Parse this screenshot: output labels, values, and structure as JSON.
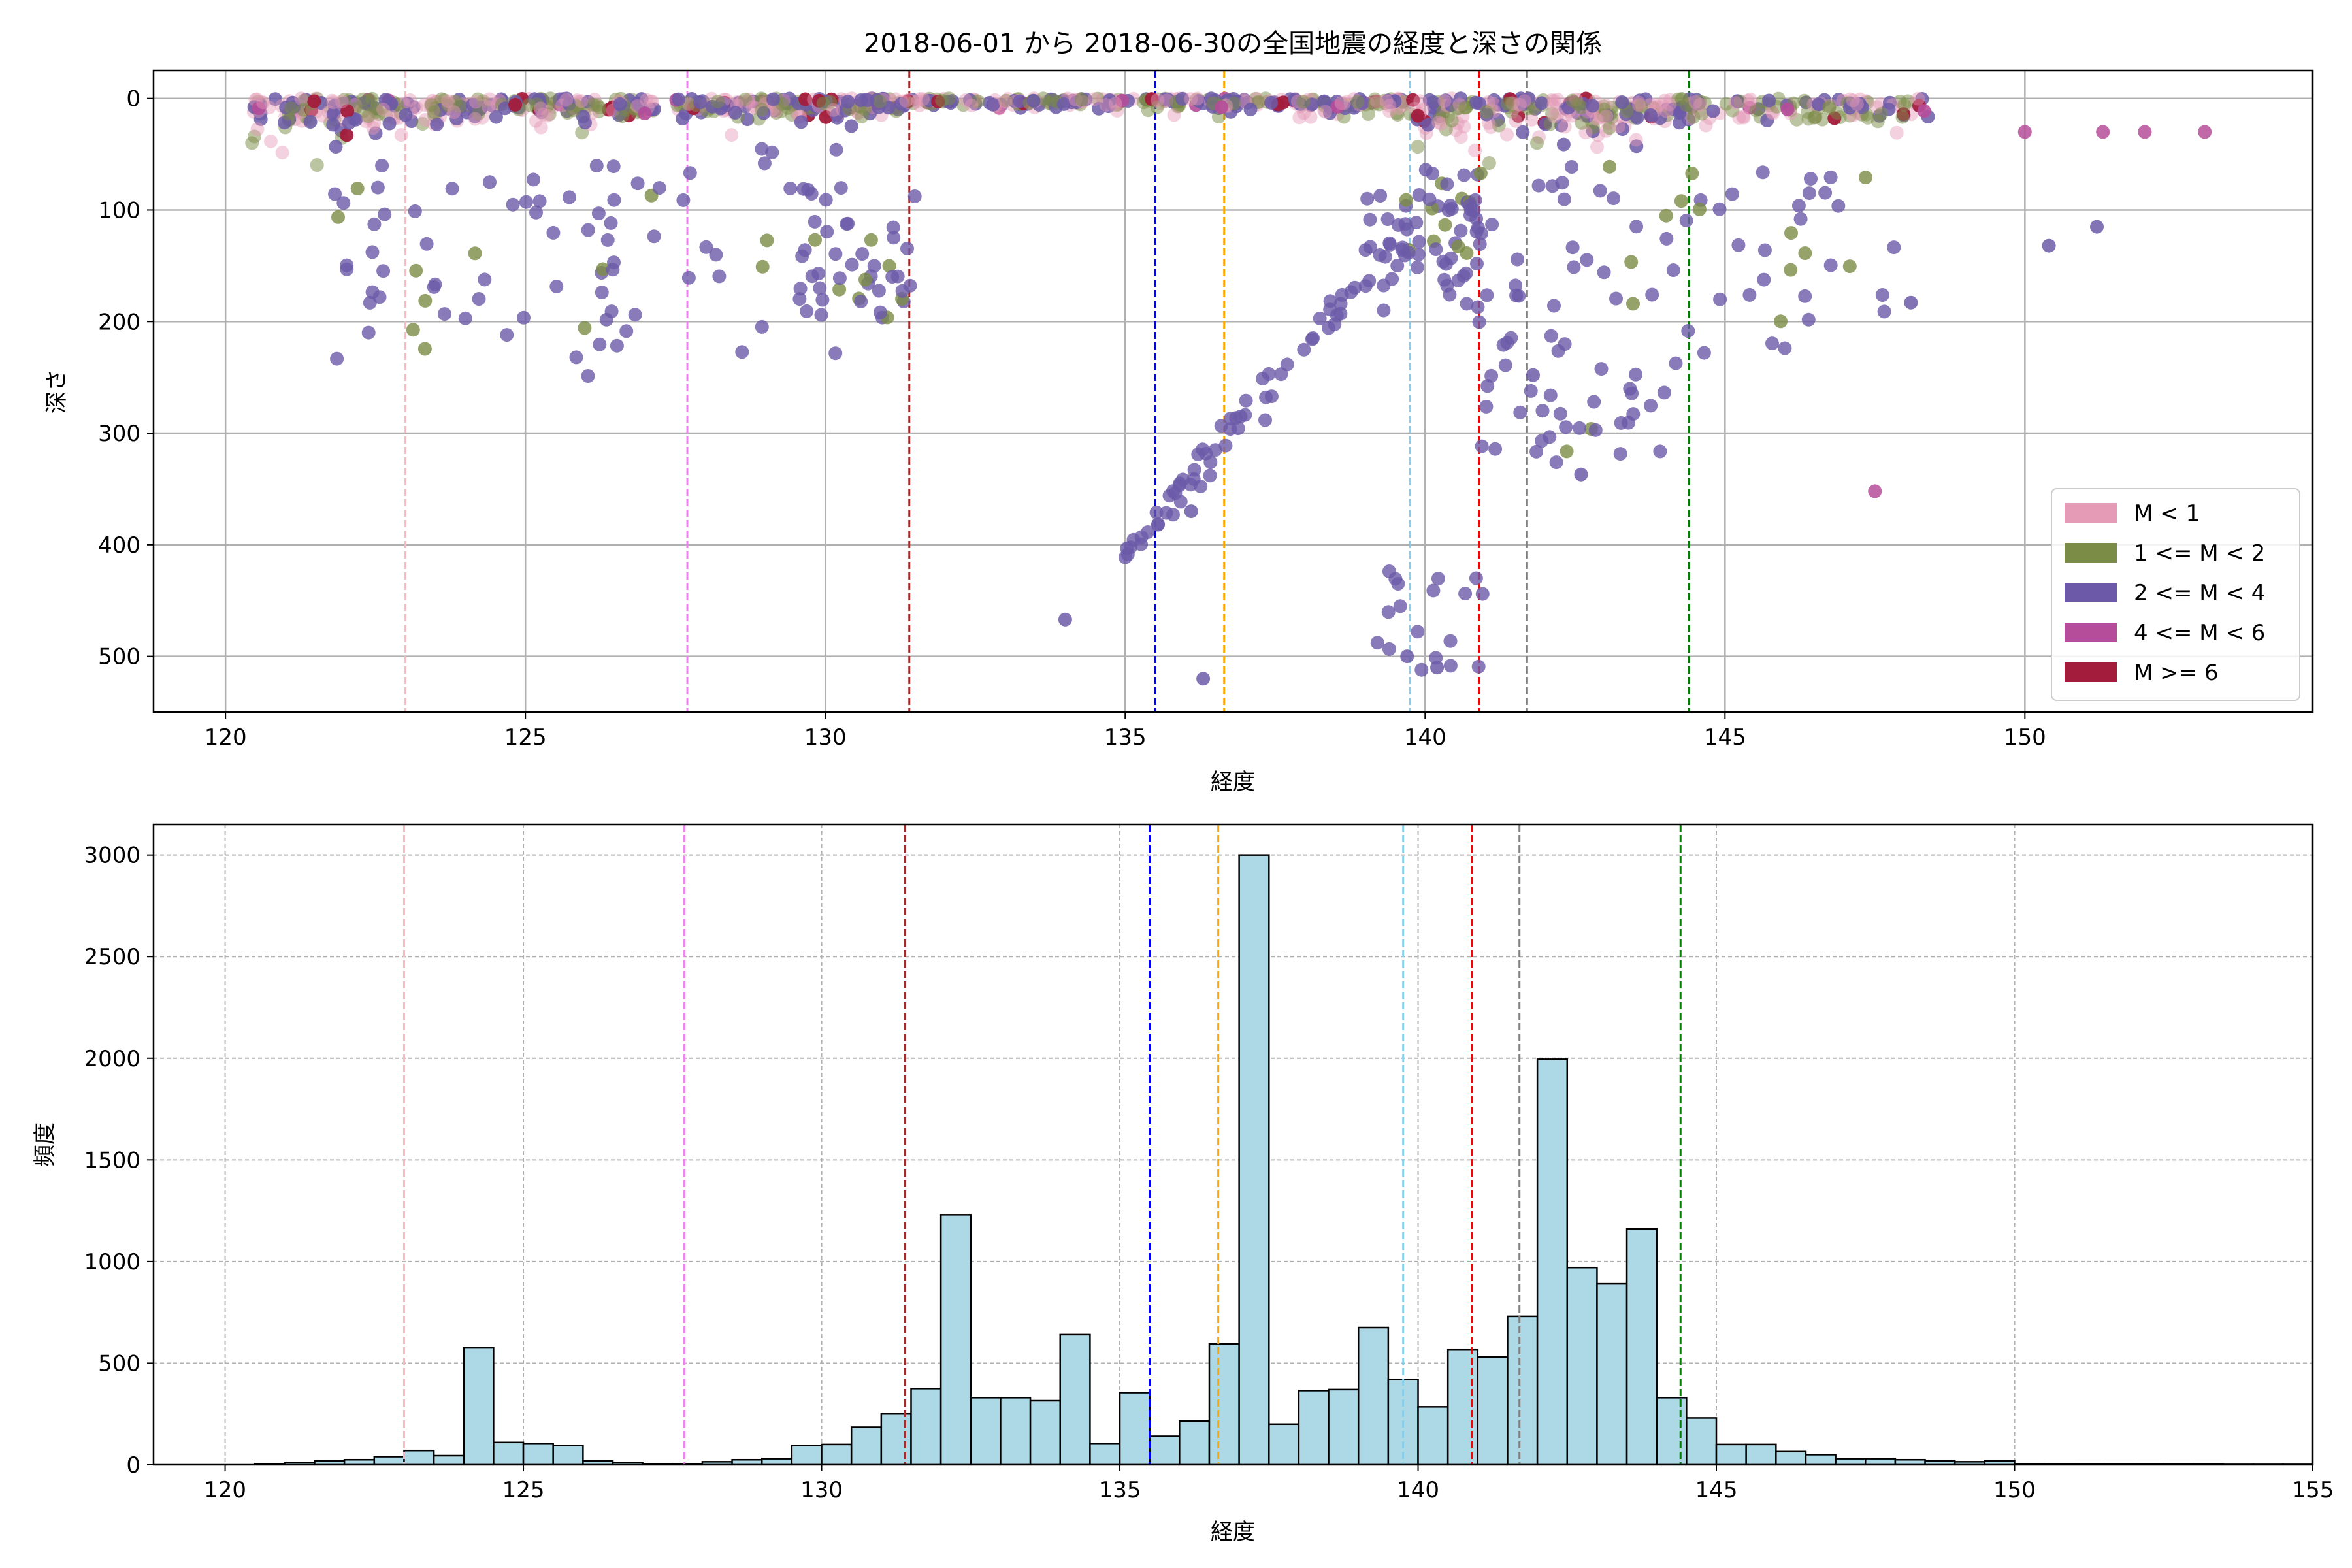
{
  "chart_data": [
    {
      "type": "scatter",
      "title": "2018-06-01 から 2018-06-30の全国地震の経度と深さの関係",
      "xlabel": "経度",
      "ylabel": "深さ",
      "xlim": [
        118.8,
        154.8
      ],
      "ylim": [
        550,
        -25
      ],
      "y_inverted": true,
      "xticks": [
        120,
        125,
        130,
        135,
        140,
        145,
        150
      ],
      "yticks": [
        0,
        100,
        200,
        300,
        400,
        500
      ],
      "grid": true,
      "legend_placement": "lower-right",
      "series": [
        {
          "name": "M < 1",
          "color": "#e59ab5"
        },
        {
          "name": "1 <= M < 2",
          "color": "#7a8c45"
        },
        {
          "name": "2 <= M < 4",
          "color": "#6c5aa8"
        },
        {
          "name": "4 <= M < 6",
          "color": "#b64d9a"
        },
        {
          "name": "M >= 6",
          "color": "#a31c3c"
        }
      ],
      "reference_lines_x": [
        {
          "x": 123.0,
          "color": "#ffb6c1"
        },
        {
          "x": 127.7,
          "color": "#ee82ee"
        },
        {
          "x": 131.4,
          "color": "#a52a2a"
        },
        {
          "x": 135.5,
          "color": "#0000ff"
        },
        {
          "x": 136.65,
          "color": "#ffa500"
        },
        {
          "x": 139.75,
          "color": "#87ceeb"
        },
        {
          "x": 140.9,
          "color": "#ff0000"
        },
        {
          "x": 141.7,
          "color": "#808080"
        },
        {
          "x": 144.4,
          "color": "#008000"
        }
      ],
      "notable_points": [
        {
          "x": 136.1,
          "y": 370
        },
        {
          "x": 136.3,
          "y": 520
        },
        {
          "x": 134.0,
          "y": 467
        },
        {
          "x": 139.7,
          "y": 500
        },
        {
          "x": 140.2,
          "y": 510
        },
        {
          "x": 141.8,
          "y": 248
        },
        {
          "x": 142.6,
          "y": 337
        },
        {
          "x": 147.5,
          "y": 352,
          "series": "4 <= M < 6"
        },
        {
          "x": 148.1,
          "y": 183
        },
        {
          "x": 150.4,
          "y": 132
        },
        {
          "x": 151.2,
          "y": 115
        },
        {
          "x": 150.0,
          "y": 30,
          "series": "4 <= M < 6"
        },
        {
          "x": 151.3,
          "y": 30,
          "series": "4 <= M < 6"
        },
        {
          "x": 152.0,
          "y": 30,
          "series": "4 <= M < 6"
        },
        {
          "x": 153.0,
          "y": 30,
          "series": "4 <= M < 6"
        }
      ]
    },
    {
      "type": "bar",
      "subtype": "histogram",
      "xlabel": "経度",
      "ylabel": "頻度",
      "xlim": [
        118.8,
        155.0
      ],
      "ylim": [
        0,
        3150
      ],
      "xticks": [
        120,
        125,
        130,
        135,
        140,
        145,
        150,
        155
      ],
      "yticks": [
        0,
        500,
        1000,
        1500,
        2000,
        2500,
        3000
      ],
      "grid": true,
      "bin_start": 120.5,
      "bin_width": 0.5,
      "bar_color": "#add8e6",
      "values": [
        5,
        10,
        20,
        25,
        40,
        70,
        45,
        575,
        110,
        105,
        95,
        20,
        10,
        5,
        5,
        15,
        25,
        30,
        95,
        100,
        185,
        250,
        375,
        1230,
        330,
        330,
        315,
        640,
        105,
        355,
        140,
        215,
        595,
        3000,
        200,
        365,
        370,
        675,
        420,
        285,
        565,
        530,
        730,
        1995,
        970,
        890,
        1160,
        330,
        230,
        100,
        100,
        65,
        50,
        30,
        30,
        25,
        20,
        15,
        20,
        5,
        5,
        3,
        3,
        3,
        3,
        3,
        2,
        2,
        2,
        2,
        2,
        2,
        2,
        2,
        2,
        2
      ],
      "reference_lines_x": [
        {
          "x": 123.0,
          "color": "#ffb6c1"
        },
        {
          "x": 127.7,
          "color": "#ee82ee"
        },
        {
          "x": 131.4,
          "color": "#a52a2a"
        },
        {
          "x": 135.5,
          "color": "#0000ff"
        },
        {
          "x": 136.65,
          "color": "#ffa500"
        },
        {
          "x": 139.75,
          "color": "#87ceeb"
        },
        {
          "x": 140.9,
          "color": "#ff0000"
        },
        {
          "x": 141.7,
          "color": "#808080"
        },
        {
          "x": 144.4,
          "color": "#008000"
        }
      ]
    }
  ]
}
